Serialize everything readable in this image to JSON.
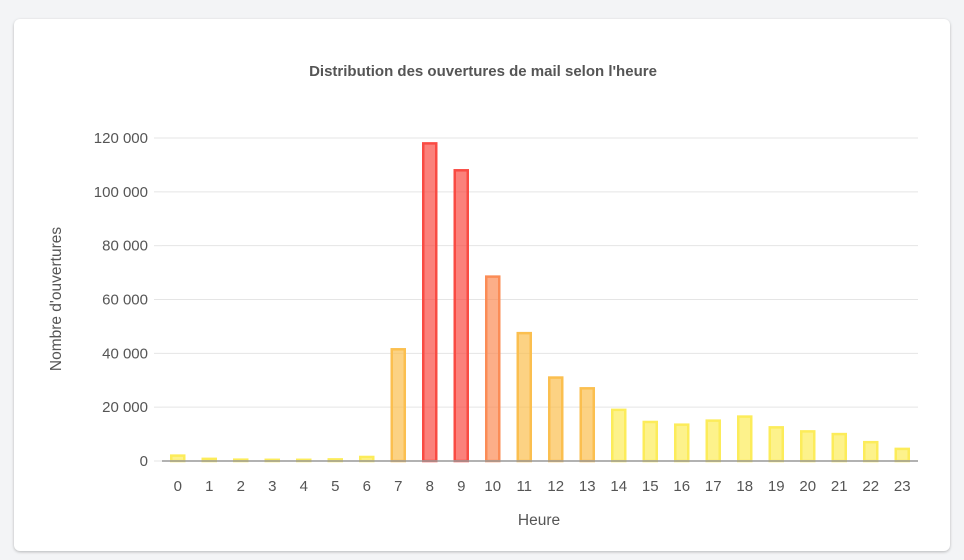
{
  "chart_data": {
    "type": "bar",
    "title": "Distribution des ouvertures de mail selon l'heure",
    "xlabel": "Heure",
    "ylabel": "Nombre d'ouvertures",
    "categories": [
      "0",
      "1",
      "2",
      "3",
      "4",
      "5",
      "6",
      "7",
      "8",
      "9",
      "10",
      "11",
      "12",
      "13",
      "14",
      "15",
      "16",
      "17",
      "18",
      "19",
      "20",
      "21",
      "22",
      "23"
    ],
    "values": [
      2000,
      800,
      500,
      300,
      300,
      600,
      1500,
      41500,
      118000,
      108000,
      68500,
      47500,
      31000,
      27000,
      19000,
      14500,
      13500,
      15000,
      16500,
      12500,
      11000,
      10000,
      7000,
      4500
    ],
    "ylim": [
      0,
      120000
    ],
    "yticks": [
      0,
      20000,
      40000,
      60000,
      80000,
      100000,
      120000
    ],
    "ytick_labels": [
      "0",
      "20 000",
      "40 000",
      "60 000",
      "80 000",
      "100 000",
      "120 000"
    ],
    "grid": true,
    "legend": false,
    "colors": {
      "low": "#fcec5a",
      "mid": "#fbbf4f",
      "high_mid": "#fb8c56",
      "high": "#f94b43",
      "grid": "#e5e5e5",
      "axis": "#999999",
      "text": "#555555"
    }
  }
}
